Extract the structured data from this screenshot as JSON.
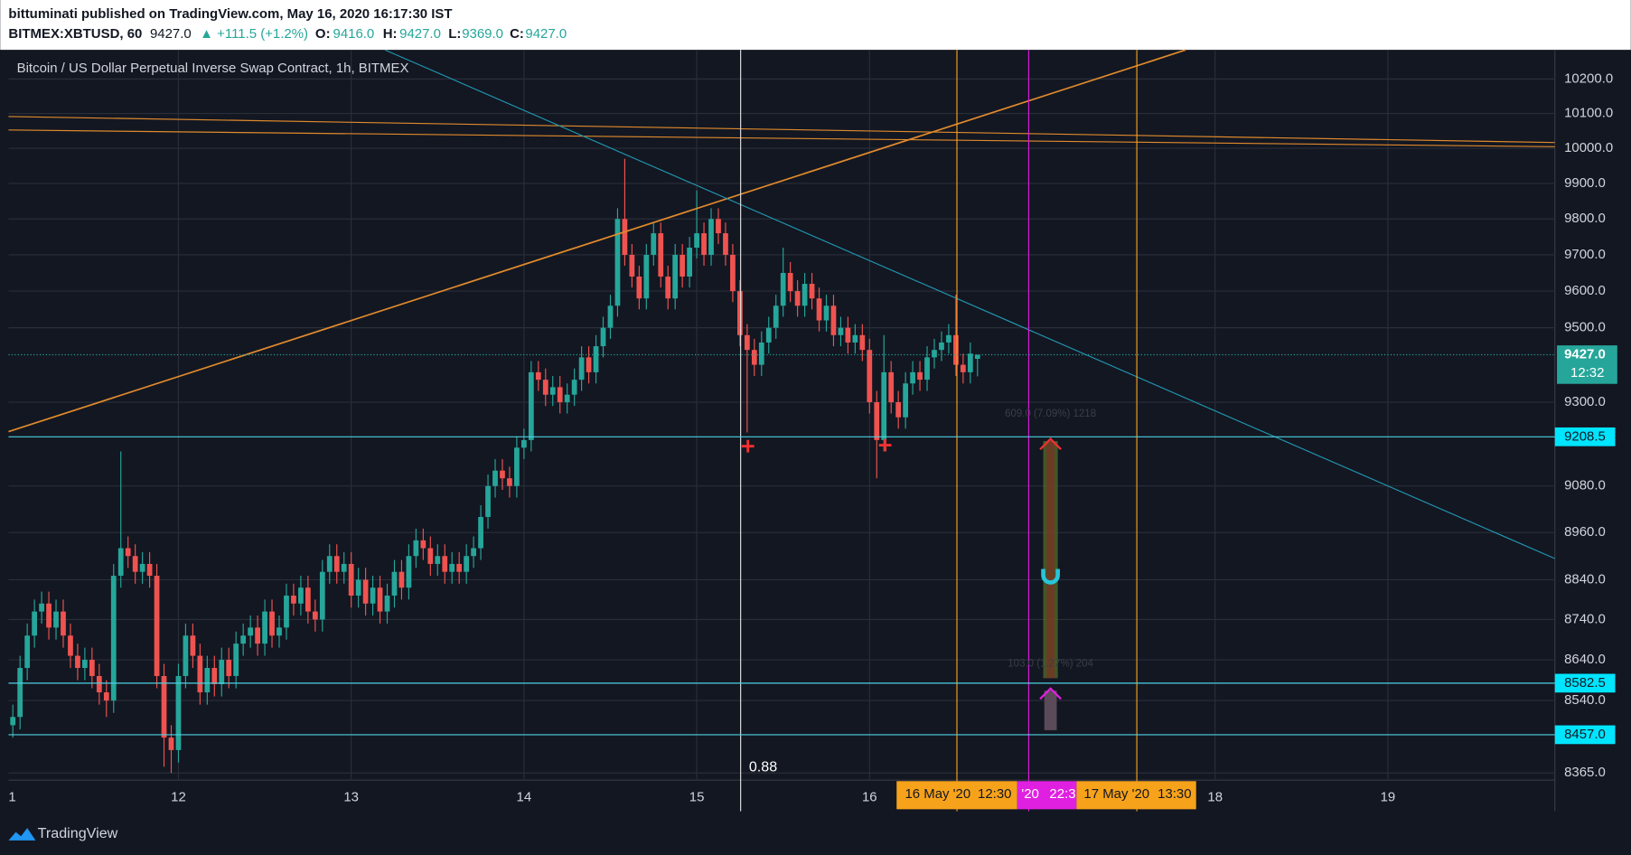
{
  "header": {
    "publisher": "bittuminati published on TradingView.com, May 16, 2020 16:17:30 IST",
    "symbol": "BITMEX:XBTUSD, 60",
    "last": "9427.0",
    "change": "▲ +111.5 (+1.2%)",
    "o_label": "O:",
    "o": "9416.0",
    "h_label": "H:",
    "h": "9427.0",
    "l_label": "L:",
    "l": "9369.0",
    "c_label": "C:",
    "c": "9427.0"
  },
  "chart_data": {
    "type": "candlestick",
    "title": "Bitcoin / US Dollar Perpetual Inverse Swap Contract, 1h, BITMEX",
    "log_scale": true,
    "grid": true,
    "up_color": "#26a69a",
    "down_color": "#ef5350",
    "ylim": [
      8348,
      10285
    ],
    "yticks": [
      {
        "value": 10200,
        "label": "10200.0"
      },
      {
        "value": 10100,
        "label": "10100.0"
      },
      {
        "value": 10000,
        "label": "10000.0"
      },
      {
        "value": 9900,
        "label": "9900.0"
      },
      {
        "value": 9800,
        "label": "9800.0"
      },
      {
        "value": 9700,
        "label": "9700.0"
      },
      {
        "value": 9600,
        "label": "9600.0"
      },
      {
        "value": 9500,
        "label": "9500.0"
      },
      {
        "value": 9300,
        "label": "9300.0"
      },
      {
        "value": 9080,
        "label": "9080.0"
      },
      {
        "value": 8960,
        "label": "8960.0"
      },
      {
        "value": 8840,
        "label": "8840.0"
      },
      {
        "value": 8740,
        "label": "8740.0"
      },
      {
        "value": 8640,
        "label": "8640.0"
      },
      {
        "value": 8540,
        "label": "8540.0"
      },
      {
        "value": 8365,
        "label": "8365.0"
      }
    ],
    "xlim": [
      -23.6,
      191.2
    ],
    "xticks": [
      {
        "value": -24,
        "label": "1"
      },
      {
        "value": 0,
        "label": "12"
      },
      {
        "value": 24,
        "label": "13"
      },
      {
        "value": 48,
        "label": "14"
      },
      {
        "value": 72,
        "label": "15"
      },
      {
        "value": 96,
        "label": "16"
      },
      {
        "value": 144,
        "label": "18"
      },
      {
        "value": 168,
        "label": "19"
      }
    ],
    "last_price": {
      "value": 9427,
      "label": "9427.0",
      "countdown": "12:32"
    },
    "hlines": [
      {
        "value": 9208.5,
        "label": "9208.5"
      },
      {
        "value": 8582.5,
        "label": "8582.5"
      },
      {
        "value": 8457,
        "label": "8457.0"
      }
    ],
    "annotations": {
      "fib": "0.88",
      "upper": "609.0 (7.09%) 1218",
      "lower": "103.0 (1.27%) 204",
      "m1_date": "16 May '20",
      "m1_time": "12:30",
      "m2_date": "'20",
      "m2_time": "22:3",
      "m3_date": "17 May '20",
      "m3_time": "13:30"
    },
    "candles": {
      "x": [
        -23,
        -22,
        -21,
        -20,
        -19,
        -18,
        -17,
        -16,
        -15,
        -14,
        -13,
        -12,
        -11,
        -10,
        -9,
        -8,
        -7,
        -6,
        -5,
        -4,
        -3,
        -2,
        -1,
        0,
        1,
        2,
        3,
        4,
        5,
        6,
        7,
        8,
        9,
        10,
        11,
        12,
        13,
        14,
        15,
        16,
        17,
        18,
        19,
        20,
        21,
        22,
        23,
        24,
        25,
        26,
        27,
        28,
        29,
        30,
        31,
        32,
        33,
        34,
        35,
        36,
        37,
        38,
        39,
        40,
        41,
        42,
        43,
        44,
        45,
        46,
        47,
        48,
        49,
        50,
        51,
        52,
        53,
        54,
        55,
        56,
        57,
        58,
        59,
        60,
        61,
        62,
        63,
        64,
        65,
        66,
        67,
        68,
        69,
        70,
        71,
        72,
        73,
        74,
        75,
        76,
        77,
        78,
        79,
        80,
        81,
        82,
        83,
        84,
        85,
        86,
        87,
        88,
        89,
        90,
        91,
        92,
        93,
        94,
        95,
        96,
        97,
        98,
        99,
        100,
        101,
        102,
        103,
        104,
        105,
        106,
        107,
        108,
        109,
        110,
        111
      ],
      "open": [
        8480,
        8500,
        8620,
        8700,
        8760,
        8780,
        8720,
        8760,
        8700,
        8650,
        8620,
        8640,
        8600,
        8560,
        8540,
        8850,
        8920,
        8900,
        8860,
        8880,
        8850,
        8600,
        8450,
        8420,
        8600,
        8700,
        8650,
        8560,
        8620,
        8580,
        8640,
        8600,
        8680,
        8700,
        8720,
        8680,
        8760,
        8700,
        8720,
        8800,
        8780,
        8820,
        8760,
        8740,
        8860,
        8900,
        8860,
        8880,
        8800,
        8840,
        8780,
        8820,
        8760,
        8800,
        8860,
        8820,
        8900,
        8940,
        8920,
        8880,
        8900,
        8860,
        8880,
        8860,
        8900,
        8920,
        9000,
        9080,
        9120,
        9100,
        9080,
        9180,
        9200,
        9380,
        9360,
        9320,
        9340,
        9300,
        9320,
        9360,
        9420,
        9380,
        9450,
        9500,
        9560,
        9800,
        9700,
        9640,
        9580,
        9700,
        9760,
        9640,
        9580,
        9700,
        9640,
        9720,
        9760,
        9700,
        9800,
        9760,
        9700,
        9600,
        9480,
        9440,
        9400,
        9460,
        9500,
        9560,
        9650,
        9600,
        9560,
        9620,
        9580,
        9520,
        9560,
        9480,
        9500,
        9460,
        9480,
        9440,
        9300,
        9200,
        9380,
        9300,
        9260,
        9350,
        9380,
        9360,
        9420,
        9440,
        9460,
        9480,
        9400,
        9380,
        9416
      ],
      "high": [
        8530,
        8650,
        8730,
        8790,
        8810,
        8810,
        8790,
        8790,
        8730,
        8680,
        8670,
        8670,
        8630,
        8590,
        8880,
        9170,
        8950,
        8930,
        8910,
        8910,
        8880,
        8630,
        8480,
        8630,
        8730,
        8730,
        8680,
        8650,
        8650,
        8670,
        8670,
        8710,
        8730,
        8750,
        8750,
        8790,
        8790,
        8750,
        8830,
        8830,
        8850,
        8850,
        8790,
        8890,
        8930,
        8930,
        8910,
        8910,
        8870,
        8870,
        8850,
        8850,
        8830,
        8890,
        8890,
        8930,
        8970,
        8970,
        8950,
        8930,
        8930,
        8910,
        8910,
        8930,
        8950,
        9030,
        9110,
        9150,
        9150,
        9130,
        9210,
        9230,
        9410,
        9410,
        9390,
        9370,
        9370,
        9350,
        9390,
        9450,
        9450,
        9480,
        9530,
        9590,
        9830,
        9970,
        9730,
        9670,
        9730,
        9790,
        9790,
        9670,
        9730,
        9730,
        9750,
        9880,
        9790,
        9830,
        9830,
        9790,
        9730,
        9630,
        9510,
        9470,
        9490,
        9530,
        9590,
        9720,
        9680,
        9630,
        9650,
        9650,
        9610,
        9590,
        9590,
        9530,
        9530,
        9510,
        9510,
        9470,
        9330,
        9480,
        9410,
        9330,
        9380,
        9410,
        9410,
        9450,
        9470,
        9490,
        9510,
        9590,
        9430,
        9460,
        9427
      ],
      "low": [
        8450,
        8470,
        8590,
        8670,
        8730,
        8690,
        8690,
        8670,
        8620,
        8590,
        8590,
        8570,
        8530,
        8500,
        8510,
        8820,
        8870,
        8830,
        8830,
        8820,
        8570,
        8380,
        8365,
        8390,
        8570,
        8620,
        8530,
        8530,
        8550,
        8550,
        8570,
        8570,
        8650,
        8670,
        8650,
        8650,
        8670,
        8670,
        8690,
        8750,
        8750,
        8730,
        8710,
        8710,
        8830,
        8830,
        8830,
        8770,
        8770,
        8750,
        8750,
        8730,
        8730,
        8770,
        8790,
        8790,
        8870,
        8890,
        8850,
        8850,
        8830,
        8830,
        8830,
        8830,
        8870,
        8890,
        8970,
        9050,
        9070,
        9050,
        9050,
        9150,
        9170,
        9330,
        9290,
        9290,
        9270,
        9270,
        9290,
        9330,
        9350,
        9350,
        9420,
        9470,
        9530,
        9670,
        9610,
        9550,
        9550,
        9670,
        9610,
        9550,
        9550,
        9610,
        9610,
        9690,
        9670,
        9670,
        9730,
        9670,
        9570,
        9450,
        9220,
        9370,
        9370,
        9430,
        9470,
        9530,
        9570,
        9530,
        9530,
        9550,
        9490,
        9490,
        9450,
        9450,
        9430,
        9430,
        9410,
        9270,
        9100,
        9170,
        9270,
        9230,
        9230,
        9320,
        9330,
        9330,
        9390,
        9410,
        9430,
        9370,
        9350,
        9350,
        9369
      ],
      "close": [
        8500,
        8620,
        8700,
        8760,
        8780,
        8720,
        8760,
        8700,
        8650,
        8620,
        8640,
        8600,
        8560,
        8540,
        8850,
        8920,
        8900,
        8860,
        8880,
        8850,
        8600,
        8450,
        8420,
        8600,
        8700,
        8650,
        8560,
        8620,
        8580,
        8640,
        8600,
        8680,
        8700,
        8720,
        8680,
        8760,
        8700,
        8720,
        8800,
        8780,
        8820,
        8760,
        8740,
        8860,
        8900,
        8860,
        8880,
        8800,
        8840,
        8780,
        8820,
        8760,
        8800,
        8860,
        8820,
        8900,
        8940,
        8920,
        8880,
        8900,
        8860,
        8880,
        8860,
        8900,
        8920,
        9000,
        9080,
        9120,
        9100,
        9080,
        9180,
        9200,
        9380,
        9360,
        9320,
        9340,
        9300,
        9320,
        9360,
        9420,
        9380,
        9450,
        9500,
        9560,
        9800,
        9700,
        9640,
        9580,
        9700,
        9760,
        9640,
        9580,
        9700,
        9640,
        9720,
        9760,
        9700,
        9800,
        9760,
        9700,
        9600,
        9480,
        9440,
        9400,
        9460,
        9500,
        9560,
        9650,
        9600,
        9560,
        9620,
        9580,
        9520,
        9560,
        9480,
        9500,
        9460,
        9480,
        9440,
        9300,
        9200,
        9380,
        9300,
        9260,
        9350,
        9380,
        9360,
        9420,
        9440,
        9460,
        9480,
        9400,
        9380,
        9430,
        9427
      ]
    }
  },
  "footer": {
    "brand": "TradingView"
  }
}
